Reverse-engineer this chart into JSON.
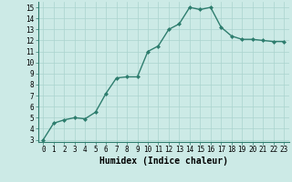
{
  "x": [
    0,
    1,
    2,
    3,
    4,
    5,
    6,
    7,
    8,
    9,
    10,
    11,
    12,
    13,
    14,
    15,
    16,
    17,
    18,
    19,
    20,
    21,
    22,
    23
  ],
  "y": [
    3.0,
    4.5,
    4.8,
    5.0,
    4.9,
    5.5,
    7.2,
    8.6,
    8.7,
    8.7,
    11.0,
    11.5,
    13.0,
    13.5,
    15.0,
    14.8,
    15.0,
    13.2,
    12.4,
    12.1,
    12.1,
    12.0,
    11.9,
    11.9
  ],
  "line_color": "#2e7d6e",
  "marker": "D",
  "marker_size": 2.0,
  "linewidth": 1.0,
  "bg_color": "#cceae6",
  "grid_color": "#aad4ce",
  "xlabel": "Humidex (Indice chaleur)",
  "xlabel_fontsize": 7,
  "xlabel_fontweight": "bold",
  "xlim": [
    -0.5,
    23.5
  ],
  "ylim": [
    2.8,
    15.5
  ],
  "yticks": [
    3,
    4,
    5,
    6,
    7,
    8,
    9,
    10,
    11,
    12,
    13,
    14,
    15
  ],
  "xticks": [
    0,
    1,
    2,
    3,
    4,
    5,
    6,
    7,
    8,
    9,
    10,
    11,
    12,
    13,
    14,
    15,
    16,
    17,
    18,
    19,
    20,
    21,
    22,
    23
  ],
  "tick_fontsize": 5.5
}
